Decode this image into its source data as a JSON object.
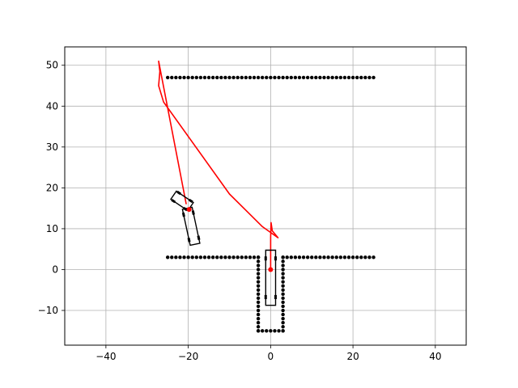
{
  "chart_data": {
    "type": "scatter",
    "title": "",
    "xlabel": "",
    "ylabel": "",
    "xlim": [
      -50,
      47.5
    ],
    "ylim": [
      -18.5,
      54.5
    ],
    "grid": true,
    "xticks": [
      -40,
      -20,
      0,
      20,
      40
    ],
    "yticks": [
      -10,
      0,
      10,
      20,
      30,
      40,
      50
    ],
    "xtick_labels": [
      "−40",
      "−20",
      "0",
      "20",
      "40"
    ],
    "ytick_labels": [
      "−10",
      "0",
      "10",
      "20",
      "30",
      "40",
      "50"
    ],
    "obstacles": {
      "color": "#000000",
      "segments": [
        {
          "x_from": -25,
          "x_to": 25,
          "y": 47,
          "step": 1
        },
        {
          "x_from": -25,
          "x_to": -3,
          "y": 3,
          "step": 1
        },
        {
          "x_from": 3,
          "x_to": 25,
          "y": 3,
          "step": 1
        },
        {
          "x": -3,
          "y_from": 3,
          "y_to": -15,
          "step": 1
        },
        {
          "x": 3,
          "y_from": 3,
          "y_to": -15,
          "step": 1
        },
        {
          "x_from": -3,
          "x_to": 3,
          "y": -15,
          "step": 1
        }
      ]
    },
    "paths": [
      {
        "color": "#ff0000",
        "points": [
          [
            0,
            0
          ],
          [
            0,
            4
          ],
          [
            0,
            8
          ],
          [
            0.1,
            11.5
          ],
          [
            0.4,
            9.5
          ],
          [
            1.8,
            7.8
          ],
          [
            -2,
            10.5
          ],
          [
            -10,
            18.5
          ],
          [
            -26,
            41
          ],
          [
            -27.2,
            45
          ],
          [
            -26.9,
            48.5
          ],
          [
            -27.2,
            51
          ],
          [
            -20.5,
            16
          ]
        ]
      }
    ],
    "vehicles": [
      {
        "name_tag": "start",
        "cx": 0,
        "cy": -2,
        "length": 13.5,
        "width": 2.4,
        "heading_deg": 90,
        "marker_x": 0,
        "marker_y": 0
      },
      {
        "name_tag": "goal-trailer",
        "cx": -19.3,
        "cy": 10.6,
        "length": 9,
        "width": 2.4,
        "heading_deg": 102
      },
      {
        "name_tag": "goal-tractor",
        "cx": -21.5,
        "cy": 16.8,
        "length": 5,
        "width": 2.4,
        "heading_deg": 146,
        "marker_x": -19.8,
        "marker_y": 14.7
      }
    ],
    "colors": {
      "grid": "#b0b0b0",
      "path": "#ff0000",
      "vehicle": "#000000",
      "marker": "#ff0000"
    }
  }
}
